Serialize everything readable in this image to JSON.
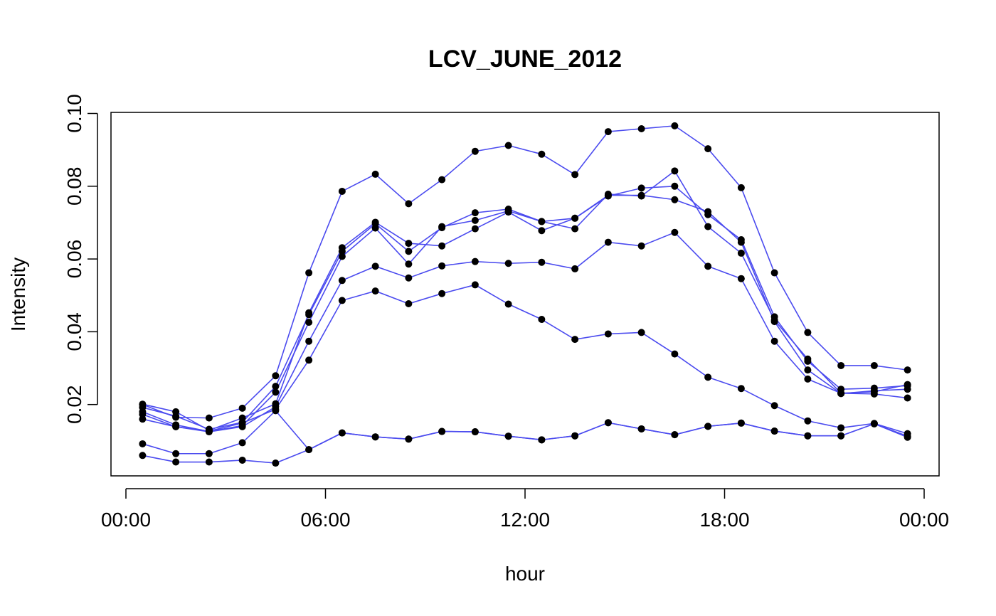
{
  "chart_data": {
    "type": "line",
    "title": "LCV_JUNE_2012",
    "xlabel": "hour",
    "ylabel": "Intensity",
    "x_hours": [
      0.5,
      1.5,
      2.5,
      3.5,
      4.5,
      5.5,
      6.5,
      7.5,
      8.5,
      9.5,
      10.5,
      11.5,
      12.5,
      13.5,
      14.5,
      15.5,
      16.5,
      17.5,
      18.5,
      19.5,
      20.5,
      21.5,
      22.5,
      23.5
    ],
    "xlim": [
      0,
      24
    ],
    "ylim": [
      0,
      0.1
    ],
    "x_ticks": [
      {
        "value": 0,
        "label": "00:00"
      },
      {
        "value": 6,
        "label": "06:00"
      },
      {
        "value": 12,
        "label": "12:00"
      },
      {
        "value": 18,
        "label": "18:00"
      },
      {
        "value": 24,
        "label": "00:00"
      }
    ],
    "y_ticks": [
      {
        "value": 0.02,
        "label": "0.02"
      },
      {
        "value": 0.04,
        "label": "0.04"
      },
      {
        "value": 0.06,
        "label": "0.06"
      },
      {
        "value": 0.08,
        "label": "0.08"
      },
      {
        "value": 0.1,
        "label": "0.10"
      }
    ],
    "line_color": "#4b4bef",
    "point_color": "#000000",
    "grid": false,
    "series": [
      {
        "values": [
          0.0201,
          0.018,
          0.0129,
          0.0163,
          0.0202,
          0.0452,
          0.0631,
          0.0701,
          0.0643,
          0.0636,
          0.0683,
          0.0729,
          0.0678,
          0.0712,
          0.0773,
          0.0795,
          0.08,
          0.0722,
          0.0653,
          0.0441,
          0.0319,
          0.0242,
          0.0245,
          0.0252
        ]
      },
      {
        "values": [
          0.0192,
          0.0168,
          0.0132,
          0.0151,
          0.025,
          0.0447,
          0.0621,
          0.0697,
          0.0621,
          0.0686,
          0.0727,
          0.0737,
          0.0703,
          0.0712,
          0.0775,
          0.0775,
          0.0763,
          0.073,
          0.0646,
          0.0428,
          0.0295,
          0.023,
          0.0238,
          0.0242
        ]
      },
      {
        "values": [
          0.018,
          0.0144,
          0.0126,
          0.0142,
          0.0234,
          0.0426,
          0.0607,
          0.0685,
          0.0586,
          0.0689,
          0.0706,
          0.0732,
          0.0703,
          0.0683,
          0.0778,
          0.0773,
          0.0842,
          0.0689,
          0.0616,
          0.0432,
          0.0325,
          0.0231,
          0.0229,
          0.0218
        ]
      },
      {
        "values": [
          0.02,
          0.0165,
          0.0163,
          0.019,
          0.0279,
          0.0562,
          0.0786,
          0.0833,
          0.0752,
          0.0818,
          0.0896,
          0.0912,
          0.0888,
          0.0832,
          0.095,
          0.0958,
          0.0966,
          0.0903,
          0.0796,
          0.0562,
          0.0398,
          0.0307,
          0.0307,
          0.0295
        ]
      },
      {
        "values": [
          0.0173,
          0.0139,
          0.0125,
          0.0139,
          0.0194,
          0.0374,
          0.0541,
          0.058,
          0.0548,
          0.0581,
          0.0593,
          0.0588,
          0.0591,
          0.0573,
          0.0646,
          0.0636,
          0.0673,
          0.058,
          0.0546,
          0.0374,
          0.027,
          0.0231,
          0.0235,
          0.0255
        ]
      },
      {
        "values": [
          0.016,
          0.0139,
          0.0127,
          0.0149,
          0.0187,
          0.0322,
          0.0486,
          0.0512,
          0.0477,
          0.0505,
          0.0529,
          0.0476,
          0.0434,
          0.0379,
          0.0394,
          0.0398,
          0.0339,
          0.0275,
          0.0244,
          0.0197,
          0.0155,
          0.0136,
          0.0148,
          0.012
        ]
      },
      {
        "values": [
          0.0092,
          0.0065,
          0.0065,
          0.0095,
          0.0183,
          0.0076,
          0.0122,
          0.0111,
          0.0105,
          0.0126,
          0.0125,
          0.0113,
          0.0103,
          0.0114,
          0.015,
          0.0133,
          0.0117,
          0.014,
          0.0149,
          0.0127,
          0.0114,
          0.0114,
          0.0147,
          0.0113
        ]
      },
      {
        "values": [
          0.006,
          0.0042,
          0.0042,
          0.0047,
          0.0039,
          0.0076,
          0.0122,
          0.0111,
          0.0105,
          0.0126,
          0.0125,
          0.0113,
          0.0103,
          0.0114,
          0.015,
          0.0133,
          0.0117,
          0.014,
          0.0149,
          0.0127,
          0.0114,
          0.0114,
          0.0147,
          0.011
        ]
      }
    ]
  }
}
